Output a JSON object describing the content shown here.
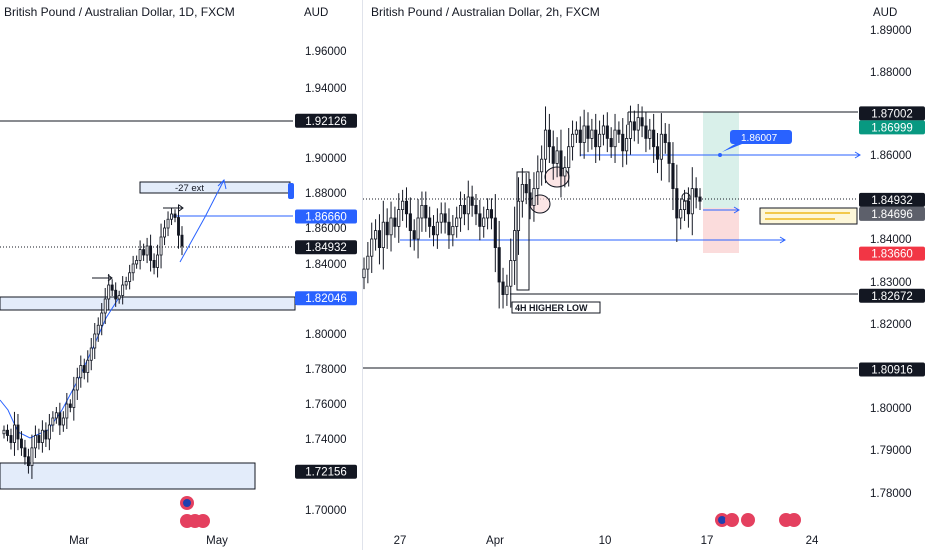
{
  "left": {
    "title": "British Pound / Australian Dollar, 1D, FXCM",
    "unit": "AUD",
    "y_ticks": [
      "1.96000",
      "1.94000",
      "1.90000",
      "1.88000",
      "1.86000",
      "1.84000",
      "1.80000",
      "1.78000",
      "1.76000",
      "1.74000",
      "1.70000"
    ],
    "y_tick_values": [
      1.96,
      1.94,
      1.9,
      1.88,
      1.86,
      1.84,
      1.8,
      1.78,
      1.76,
      1.74,
      1.7
    ],
    "x_ticks": [
      "Mar",
      "May"
    ],
    "badges": [
      {
        "label": "1.92126",
        "value": 1.92126,
        "color": "#131722"
      },
      {
        "label": "1.86660",
        "value": 1.8666,
        "color": "#2962ff"
      },
      {
        "label": "1.84932",
        "value": 1.84932,
        "color": "#131722"
      },
      {
        "label": "1.82046",
        "value": 1.82046,
        "color": "#2962ff"
      },
      {
        "label": "1.72156",
        "value": 1.72156,
        "color": "#131722"
      }
    ],
    "annotation_ext": "-27 ext"
  },
  "right": {
    "title": "British Pound / Australian Dollar, 2h, FXCM",
    "unit": "AUD",
    "y_ticks": [
      "1.89000",
      "1.88000",
      "1.86000",
      "1.84000",
      "1.83000",
      "1.82000",
      "1.80000",
      "1.79000",
      "1.78000"
    ],
    "y_tick_values": [
      1.89,
      1.88,
      1.86,
      1.84,
      1.83,
      1.82,
      1.8,
      1.79,
      1.78
    ],
    "x_ticks": [
      "27",
      "Apr",
      "10",
      "17",
      "24"
    ],
    "badges": [
      {
        "label": "1.87002",
        "value": 1.87002,
        "color": "#131722"
      },
      {
        "label": "1.86999",
        "value": 1.86999,
        "color": "#089981"
      },
      {
        "label": "1.84932",
        "value": 1.84932,
        "color": "#131722"
      },
      {
        "label": "1.84696",
        "value": 1.84696,
        "color": "#5d606b"
      },
      {
        "label": "1.83660",
        "value": 1.8366,
        "color": "#f23645"
      },
      {
        "label": "1.82672",
        "value": 1.82672,
        "color": "#131722"
      },
      {
        "label": "1.80916",
        "value": 1.80916,
        "color": "#131722"
      }
    ],
    "annotation_target": "1.86007",
    "annotation_low": "4H HIGHER LOW"
  },
  "colors": {
    "up": "#131722",
    "down": "#131722",
    "line": "#2962ff",
    "zone_fill": "#e3ecfa",
    "tp_fill": "#d9f0ea",
    "sl_fill": "#fbdcdc"
  },
  "chart_data": [
    {
      "type": "candlestick",
      "title": "British Pound / Australian Dollar, 1D, FXCM",
      "ylim": [
        1.7,
        1.975
      ],
      "series": [
        {
          "values": [
            1.745,
            1.742,
            1.738,
            1.748,
            1.74,
            1.735,
            1.73,
            1.725,
            1.735,
            1.742,
            1.738,
            1.745,
            1.74,
            1.748,
            1.752,
            1.755,
            1.748,
            1.752,
            1.76,
            1.758,
            1.768,
            1.775,
            1.782,
            1.778,
            1.785,
            1.792,
            1.8,
            1.805,
            1.812,
            1.82,
            1.828,
            1.825,
            1.82,
            1.822,
            1.828,
            1.83,
            1.835,
            1.84,
            1.842,
            1.848,
            1.845,
            1.85,
            1.842,
            1.838,
            1.845,
            1.855,
            1.86,
            1.865,
            1.868,
            1.866,
            1.856,
            1.85
          ]
        }
      ]
    },
    {
      "type": "candlestick",
      "title": "British Pound / Australian Dollar, 2h, FXCM",
      "ylim": [
        1.775,
        1.892
      ],
      "series": [
        {
          "values": [
            1.833,
            1.836,
            1.84,
            1.842,
            1.838,
            1.844,
            1.841,
            1.845,
            1.843,
            1.847,
            1.849,
            1.846,
            1.842,
            1.84,
            1.845,
            1.848,
            1.845,
            1.843,
            1.841,
            1.844,
            1.846,
            1.844,
            1.841,
            1.843,
            1.845,
            1.848,
            1.846,
            1.85,
            1.848,
            1.846,
            1.843,
            1.845,
            1.847,
            1.845,
            1.838,
            1.83,
            1.827,
            1.829,
            1.835,
            1.842,
            1.849,
            1.853,
            1.851,
            1.848,
            1.852,
            1.856,
            1.859,
            1.866,
            1.862,
            1.858,
            1.861,
            1.855,
            1.857,
            1.862,
            1.865,
            1.866,
            1.863,
            1.867,
            1.864,
            1.866,
            1.862,
            1.865,
            1.867,
            1.864,
            1.862,
            1.866,
            1.865,
            1.861,
            1.864,
            1.868,
            1.866,
            1.869,
            1.867,
            1.864,
            1.866,
            1.862,
            1.859,
            1.865,
            1.863,
            1.858,
            1.852,
            1.845,
            1.847,
            1.849,
            1.846,
            1.852,
            1.85,
            1.849
          ]
        }
      ]
    }
  ]
}
